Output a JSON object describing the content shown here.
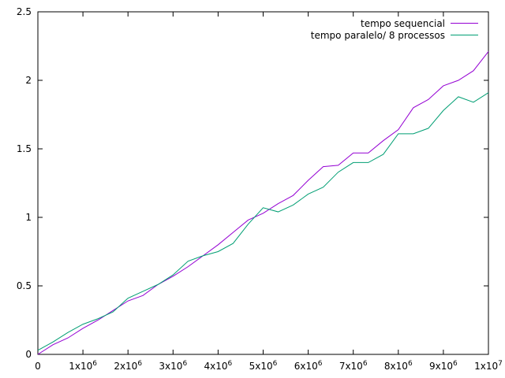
{
  "chart_data": {
    "type": "line",
    "xlim": [
      0,
      10000000
    ],
    "ylim": [
      0,
      2.5
    ],
    "x_ticks": [
      0,
      1000000,
      2000000,
      3000000,
      4000000,
      5000000,
      6000000,
      7000000,
      8000000,
      9000000,
      10000000
    ],
    "x_tick_labels": [
      {
        "base": "0",
        "exp": ""
      },
      {
        "base": "1x10",
        "exp": "6"
      },
      {
        "base": "2x10",
        "exp": "6"
      },
      {
        "base": "3x10",
        "exp": "6"
      },
      {
        "base": "4x10",
        "exp": "6"
      },
      {
        "base": "5x10",
        "exp": "6"
      },
      {
        "base": "6x10",
        "exp": "6"
      },
      {
        "base": "7x10",
        "exp": "6"
      },
      {
        "base": "8x10",
        "exp": "6"
      },
      {
        "base": "9x10",
        "exp": "6"
      },
      {
        "base": "1x10",
        "exp": "7"
      }
    ],
    "y_ticks": [
      0,
      0.5,
      1,
      1.5,
      2,
      2.5
    ],
    "y_tick_labels": [
      "0",
      "0.5",
      "1",
      "1.5",
      "2",
      "2.5"
    ],
    "legend_position": "top-right",
    "grid": false,
    "x": [
      0,
      333333,
      666667,
      1000000,
      1333333,
      1666667,
      2000000,
      2333333,
      2666667,
      3000000,
      3333333,
      3666667,
      4000000,
      4333333,
      4666667,
      5000000,
      5333333,
      5666667,
      6000000,
      6333333,
      6666667,
      7000000,
      7333333,
      7666667,
      8000000,
      8333333,
      8666667,
      9000000,
      9333333,
      9666667,
      10000000
    ],
    "series": [
      {
        "name": "tempo sequencial",
        "color": "#9400d3",
        "values": [
          0.0,
          0.07,
          0.12,
          0.19,
          0.25,
          0.32,
          0.39,
          0.43,
          0.51,
          0.57,
          0.64,
          0.72,
          0.8,
          0.89,
          0.98,
          1.03,
          1.1,
          1.16,
          1.27,
          1.37,
          1.38,
          1.47,
          1.47,
          1.56,
          1.64,
          1.8,
          1.86,
          1.96,
          2.0,
          2.07,
          2.21
        ]
      },
      {
        "name": "tempo paralelo/ 8 processos",
        "color": "#009e73",
        "values": [
          0.03,
          0.09,
          0.16,
          0.22,
          0.26,
          0.31,
          0.41,
          0.46,
          0.51,
          0.58,
          0.68,
          0.72,
          0.75,
          0.81,
          0.95,
          1.07,
          1.04,
          1.09,
          1.17,
          1.22,
          1.33,
          1.4,
          1.4,
          1.46,
          1.61,
          1.61,
          1.65,
          1.78,
          1.88,
          1.84,
          1.91
        ]
      }
    ]
  }
}
